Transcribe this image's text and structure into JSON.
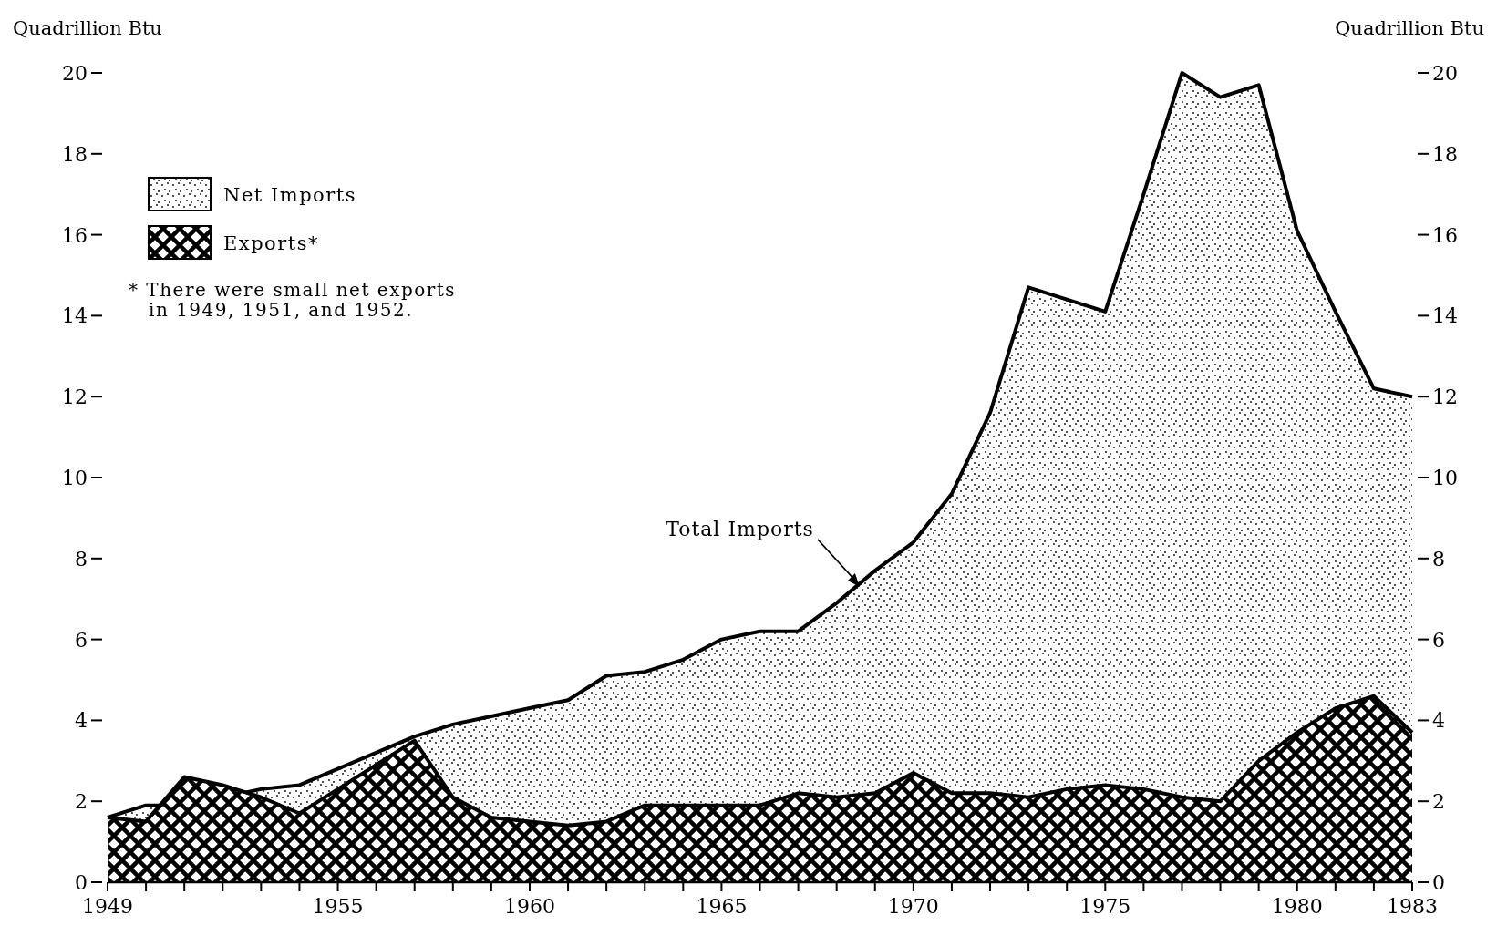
{
  "chart_data": {
    "type": "area",
    "ylabel": "Quadrillion Btu",
    "y2label": "Quadrillion Btu",
    "x": [
      1949,
      1950,
      1951,
      1952,
      1953,
      1954,
      1955,
      1956,
      1957,
      1958,
      1959,
      1960,
      1961,
      1962,
      1963,
      1964,
      1965,
      1966,
      1967,
      1968,
      1969,
      1970,
      1971,
      1972,
      1973,
      1974,
      1975,
      1976,
      1977,
      1978,
      1979,
      1980,
      1981,
      1982,
      1983
    ],
    "series": [
      {
        "name": "Net Imports",
        "color": "#000000",
        "values": [
          1.6,
          1.9,
          1.9,
          2.1,
          2.3,
          2.4,
          2.8,
          3.2,
          3.6,
          3.9,
          4.1,
          4.3,
          4.5,
          5.1,
          5.2,
          5.5,
          6.0,
          6.2,
          6.2,
          6.9,
          7.7,
          8.4,
          9.6,
          11.6,
          14.7,
          14.4,
          14.1,
          17.0,
          20.0,
          19.4,
          19.7,
          16.1,
          14.1,
          12.2,
          12.0
        ]
      },
      {
        "name": "Exports*",
        "color": "#000000",
        "values": [
          1.6,
          1.5,
          2.6,
          2.4,
          2.1,
          1.7,
          2.3,
          2.9,
          3.5,
          2.1,
          1.6,
          1.5,
          1.4,
          1.5,
          1.9,
          1.9,
          1.9,
          1.9,
          2.2,
          2.1,
          2.2,
          2.7,
          2.2,
          2.2,
          2.1,
          2.3,
          2.4,
          2.3,
          2.1,
          2.0,
          3.0,
          3.7,
          4.3,
          4.6,
          3.7
        ]
      }
    ],
    "xlim": [
      1949,
      1983
    ],
    "xticks": [
      1949,
      {
        "value": 1950,
        "label": null
      },
      {
        "value": 1951,
        "label": null
      },
      {
        "value": 1952,
        "label": null
      },
      {
        "value": 1953,
        "label": null
      },
      {
        "value": 1954,
        "label": null
      },
      1955,
      {
        "value": 1956,
        "label": null
      },
      {
        "value": 1957,
        "label": null
      },
      {
        "value": 1958,
        "label": null
      },
      {
        "value": 1959,
        "label": null
      },
      1960,
      {
        "value": 1961,
        "label": null
      },
      {
        "value": 1962,
        "label": null
      },
      {
        "value": 1963,
        "label": null
      },
      {
        "value": 1964,
        "label": null
      },
      1965,
      {
        "value": 1966,
        "label": null
      },
      {
        "value": 1967,
        "label": null
      },
      {
        "value": 1968,
        "label": null
      },
      {
        "value": 1969,
        "label": null
      },
      1970,
      {
        "value": 1971,
        "label": null
      },
      {
        "value": 1972,
        "label": null
      },
      {
        "value": 1973,
        "label": null
      },
      {
        "value": 1974,
        "label": null
      },
      1975,
      {
        "value": 1976,
        "label": null
      },
      {
        "value": 1977,
        "label": null
      },
      {
        "value": 1978,
        "label": null
      },
      {
        "value": 1979,
        "label": null
      },
      1980,
      {
        "value": 1981,
        "label": null
      },
      {
        "value": 1982,
        "label": null
      },
      1983
    ],
    "ylim": [
      0,
      20
    ],
    "yticks": [
      0,
      2,
      4,
      6,
      8,
      10,
      12,
      14,
      16,
      18,
      20
    ],
    "y2lim": [
      0,
      20
    ],
    "y2ticks": [
      0,
      2,
      4,
      6,
      8,
      10,
      12,
      14,
      16,
      18,
      20
    ],
    "annotations": [
      {
        "text": "Total Imports",
        "x": 1968.6,
        "y": 7.3
      },
      "* There were small net exports in 1949, 1951, and 1952."
    ],
    "legend": "top left",
    "grid": false
  }
}
